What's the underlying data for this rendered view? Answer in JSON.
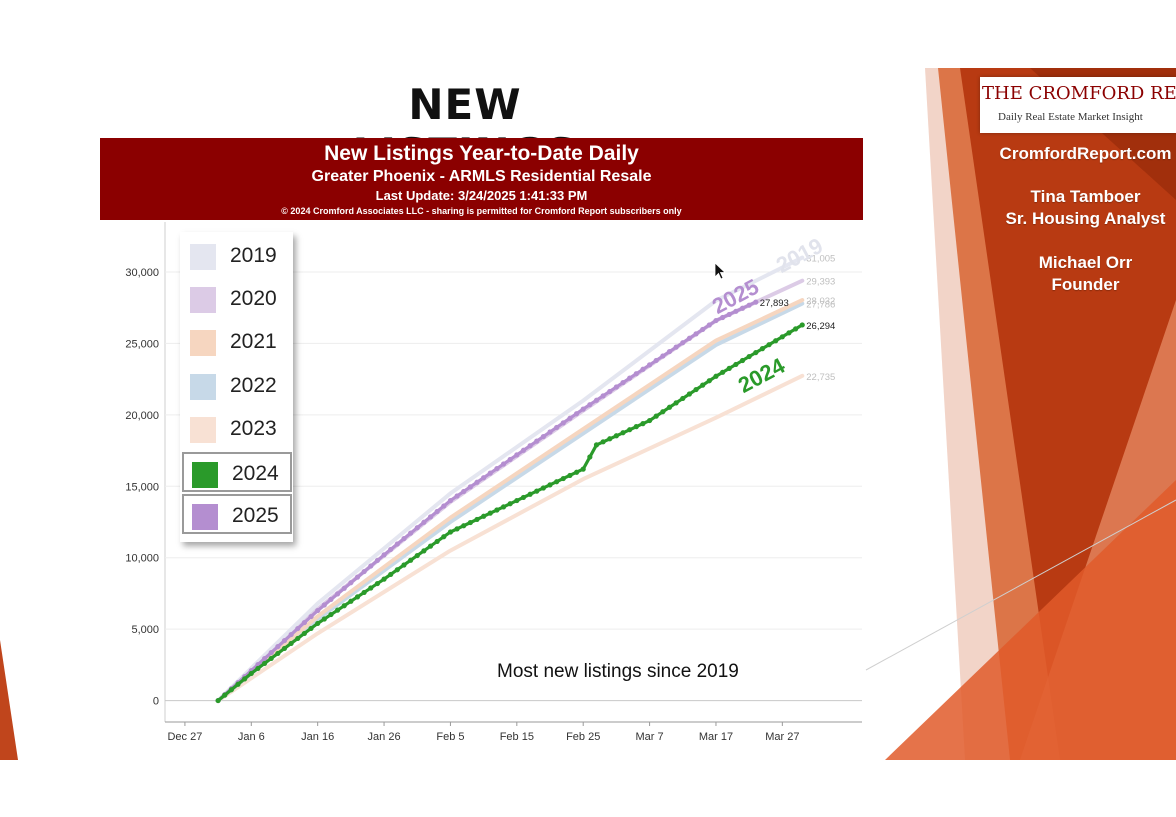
{
  "slide": {
    "title": "NEW LISTINGS"
  },
  "sidebar": {
    "logo_name": "THE CROMFORD REPORT",
    "logo_tagline": "Daily Real Estate Market Insight",
    "website": "CromfordReport.com",
    "person1_name": "Tina Tamboer",
    "person1_title": "Sr. Housing Analyst",
    "person2_name": "Michael Orr",
    "person2_title": "Founder"
  },
  "chart_header": {
    "title": "New Listings Year-to-Date Daily",
    "subtitle": "Greater Phoenix - ARMLS Residential Resale",
    "last_update": "Last Update: 3/24/2025 1:41:33 PM",
    "copyright": "© 2024 Cromford Associates LLC - sharing is permitted for Cromford Report subscribers only"
  },
  "annotation": "Most new listings since 2019",
  "colors": {
    "header": "#8b0000",
    "accent_2024": "#2a9a2a",
    "accent_2025": "#b48ed0"
  },
  "chart_data": {
    "type": "line",
    "x_tick_labels": [
      "Dec 27",
      "Jan 6",
      "Jan 16",
      "Jan 26",
      "Feb 5",
      "Feb 15",
      "Feb 25",
      "Mar 7",
      "Mar 17",
      "Mar 27"
    ],
    "x_tick_days": [
      0,
      10,
      20,
      30,
      40,
      50,
      60,
      70,
      80,
      90
    ],
    "xlim": [
      -3,
      102
    ],
    "ylim": [
      -1500,
      33500
    ],
    "y_ticks": [
      0,
      5000,
      10000,
      15000,
      20000,
      25000,
      30000
    ],
    "y_tick_labels": [
      "0",
      "5,000",
      "10,000",
      "15,000",
      "20,000",
      "25,000",
      "30,000"
    ],
    "grid": "horizontal",
    "legend": "top-left",
    "series": [
      {
        "name": "2019",
        "color": "#e4e6f0",
        "width": 4,
        "points": [
          [
            5,
            0
          ],
          [
            20,
            6800
          ],
          [
            40,
            14500
          ],
          [
            60,
            21000
          ],
          [
            80,
            28000
          ],
          [
            93,
            31005
          ]
        ],
        "end_label": "31,005",
        "end_label_color": "#bfbfbf",
        "big_label": "2019"
      },
      {
        "name": "2020",
        "color": "#dccbe6",
        "width": 4,
        "points": [
          [
            5,
            0
          ],
          [
            20,
            6400
          ],
          [
            40,
            13900
          ],
          [
            60,
            20300
          ],
          [
            80,
            26600
          ],
          [
            93,
            29393
          ]
        ],
        "end_label": "29,393",
        "end_label_color": "#bfbfbf"
      },
      {
        "name": "2021",
        "color": "#f6d6c0",
        "width": 4,
        "points": [
          [
            5,
            0
          ],
          [
            20,
            5900
          ],
          [
            40,
            12800
          ],
          [
            60,
            19000
          ],
          [
            80,
            25200
          ],
          [
            93,
            28032
          ]
        ],
        "end_label": "28,032",
        "end_label_color": "#bfbfbf"
      },
      {
        "name": "2022",
        "color": "#c7d9e8",
        "width": 4,
        "points": [
          [
            5,
            0
          ],
          [
            20,
            5700
          ],
          [
            40,
            12500
          ],
          [
            60,
            18700
          ],
          [
            80,
            24900
          ],
          [
            93,
            27786
          ]
        ],
        "end_label": "27,786",
        "end_label_color": "#bfbfbf"
      },
      {
        "name": "2023",
        "color": "#f8e1d4",
        "width": 4,
        "points": [
          [
            5,
            0
          ],
          [
            20,
            4700
          ],
          [
            40,
            10500
          ],
          [
            60,
            15500
          ],
          [
            80,
            19800
          ],
          [
            93,
            22735
          ]
        ],
        "end_label": "22,735",
        "end_label_color": "#bfbfbf"
      },
      {
        "name": "2024",
        "color": "#2a9a2a",
        "width": 3.2,
        "dots": true,
        "points": [
          [
            5,
            0
          ],
          [
            10,
            1900
          ],
          [
            20,
            5400
          ],
          [
            30,
            8500
          ],
          [
            40,
            11800
          ],
          [
            50,
            14000
          ],
          [
            60,
            16200
          ],
          [
            62,
            17900
          ],
          [
            70,
            19600
          ],
          [
            80,
            22700
          ],
          [
            93,
            26294
          ]
        ],
        "end_label": "26,294",
        "end_label_color": "#222222",
        "big_label": "2024"
      },
      {
        "name": "2025",
        "color": "#b48ed0",
        "width": 3.2,
        "dots": true,
        "points": [
          [
            5,
            0
          ],
          [
            10,
            2100
          ],
          [
            20,
            6300
          ],
          [
            30,
            10200
          ],
          [
            40,
            14000
          ],
          [
            50,
            17200
          ],
          [
            60,
            20400
          ],
          [
            70,
            23500
          ],
          [
            80,
            26600
          ],
          [
            86,
            27893
          ]
        ],
        "end_label": "27,893",
        "end_label_color": "#222222",
        "big_label": "2025"
      }
    ]
  }
}
